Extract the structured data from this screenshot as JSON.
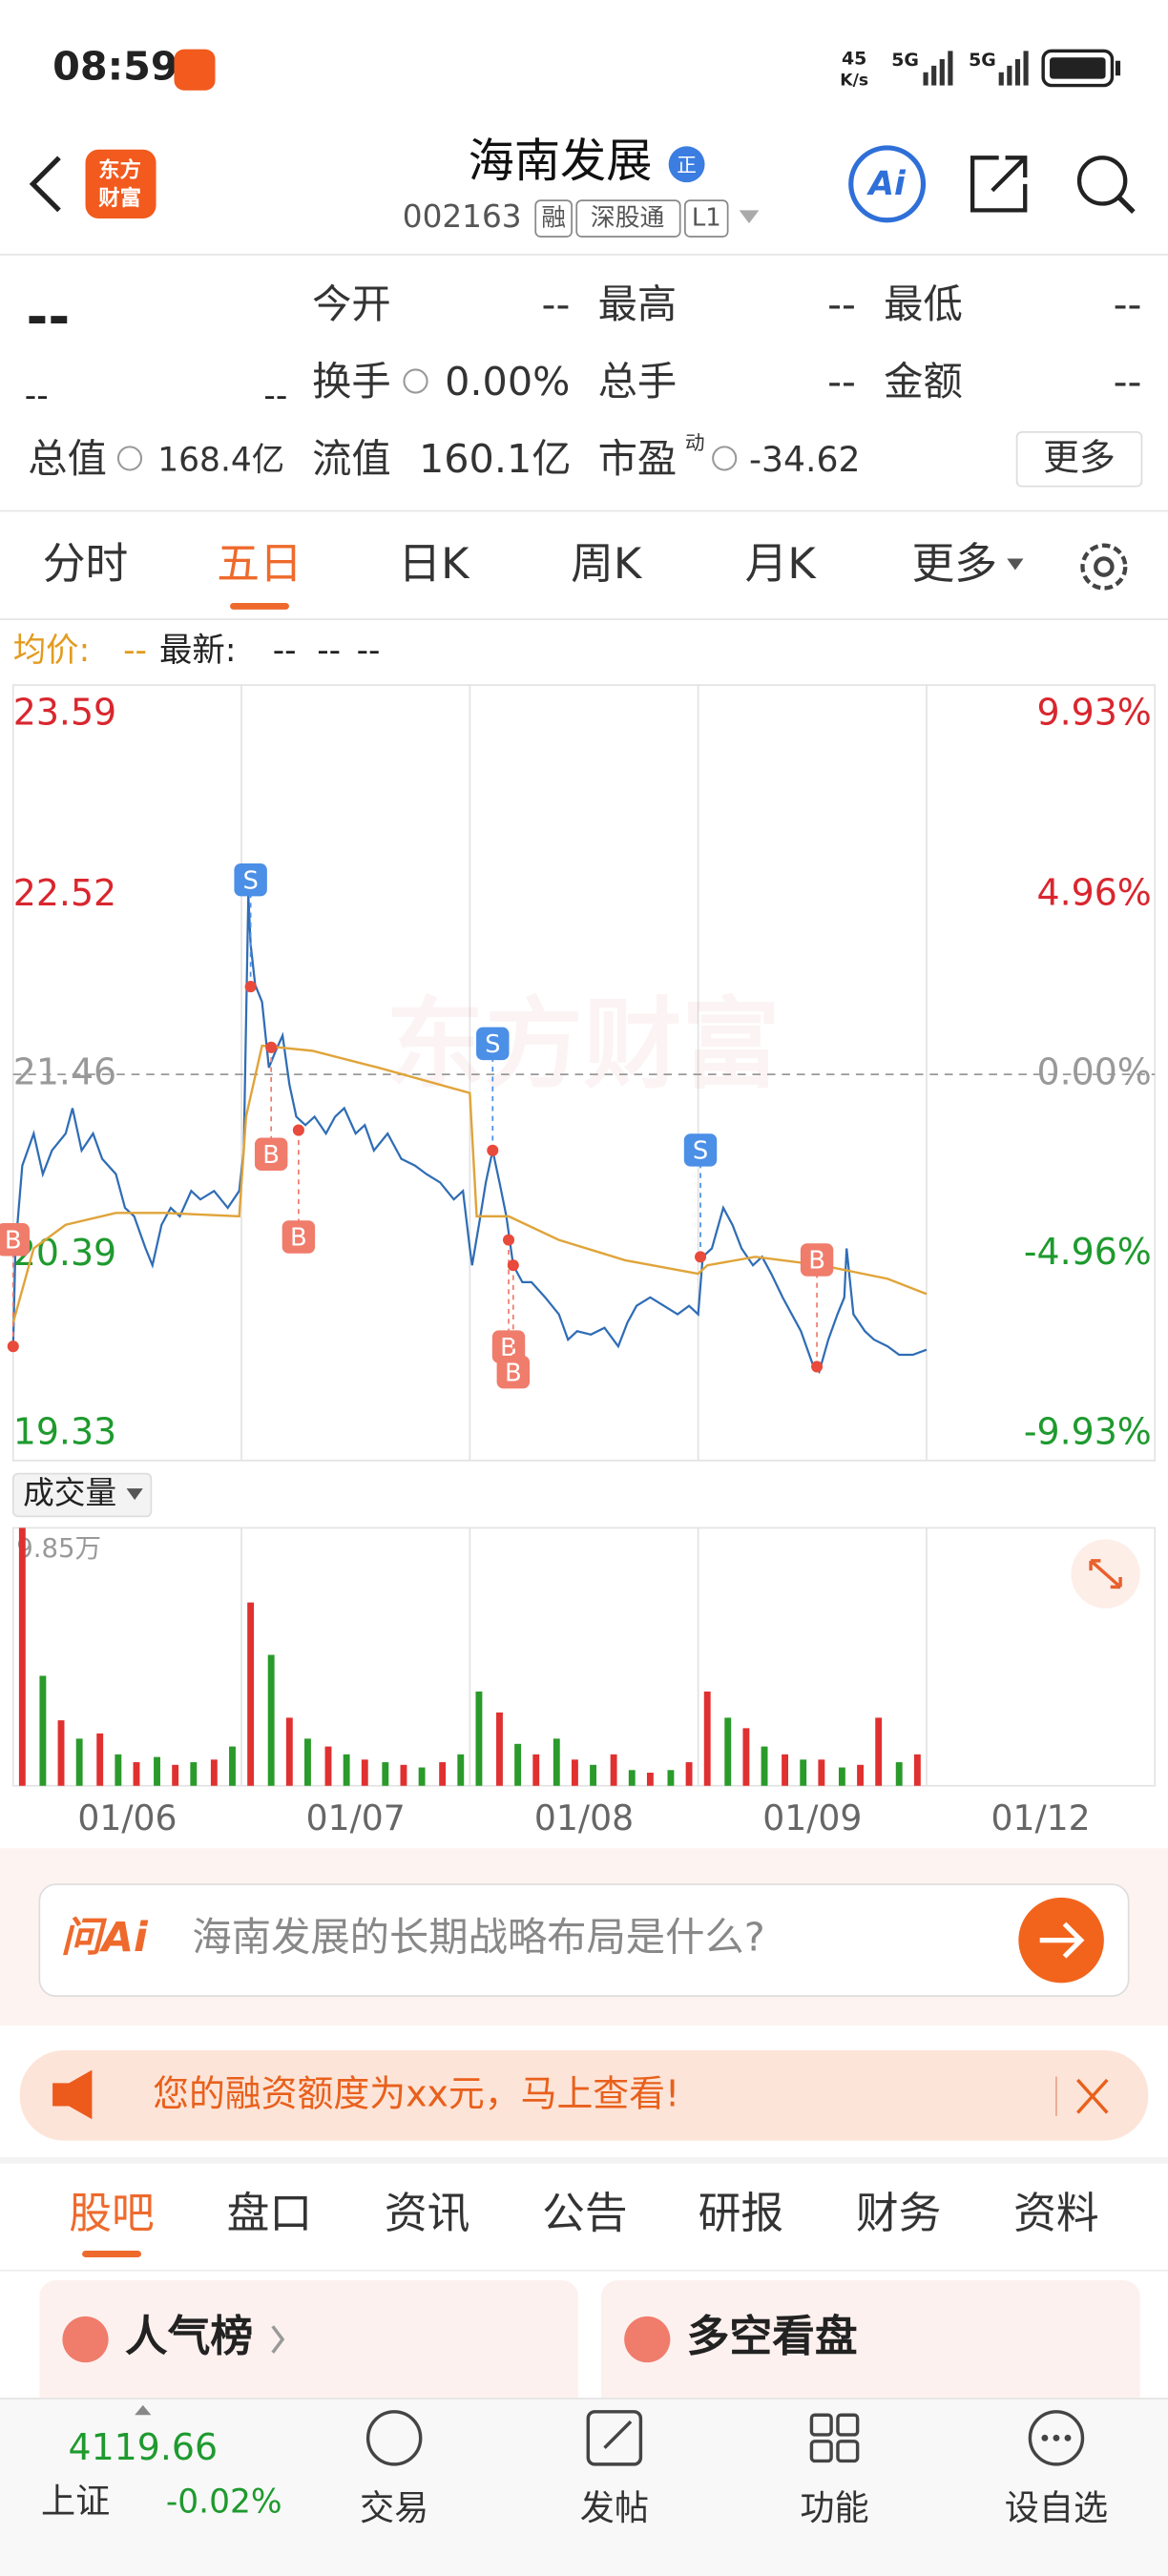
{
  "status_bar": {
    "time": "08:59",
    "speed": "45",
    "speed_unit": "K/s",
    "net1": "5G",
    "net2": "5G"
  },
  "header": {
    "logo": [
      "东方",
      "财富"
    ],
    "title": "海南发展",
    "badge": "正",
    "code": "002163",
    "tags": [
      "融",
      "深股通",
      "L1"
    ],
    "ai": "Ai"
  },
  "quote": {
    "price": "--",
    "change": "--",
    "change_pct": "--",
    "rows": [
      [
        {
          "label": "今开",
          "value": "--"
        },
        {
          "label": "最高",
          "value": "--"
        },
        {
          "label": "最低",
          "value": "--"
        }
      ],
      [
        {
          "label": "换手",
          "value": "0.00%"
        },
        {
          "label": "总手",
          "value": "--"
        },
        {
          "label": "金额",
          "value": "--"
        }
      ],
      [
        {
          "label": "总值",
          "value": "168.4亿"
        },
        {
          "label": "流值",
          "value": "160.1亿"
        },
        {
          "label": "市盈",
          "sup": "动",
          "value": "-34.62"
        }
      ]
    ],
    "more": "更多"
  },
  "tabs": {
    "items": [
      "分时",
      "五日",
      "日K",
      "周K",
      "月K",
      "更多"
    ],
    "active": 1
  },
  "info": {
    "avg_label": "均价:",
    "avg_value": "--",
    "latest_label": "最新:",
    "latest_values": [
      "--",
      "--",
      "--"
    ]
  },
  "volume_selector": "成交量",
  "chart_data": [
    {
      "type": "line",
      "watermark": "东方财富",
      "xlim": [
        0,
        5
      ],
      "ylim": [
        19.33,
        23.59
      ],
      "yticks": [
        23.59,
        22.52,
        21.46,
        20.39,
        19.33
      ],
      "y2lim": [
        -9.93,
        9.93
      ],
      "y2ticks": [
        {
          "value": 9.93,
          "label": "9.93%"
        },
        {
          "value": 4.96,
          "label": "4.96%"
        },
        {
          "value": 0,
          "label": "0.00%"
        },
        {
          "value": -4.96,
          "label": "-4.96%"
        },
        {
          "value": -9.93,
          "label": "-9.93%"
        }
      ],
      "series": [
        {
          "name": "最新",
          "color": "#2f6db5",
          "x": [
            0,
            0.01,
            0.04,
            0.09,
            0.13,
            0.17,
            0.23,
            0.26,
            0.3,
            0.35,
            0.39,
            0.45,
            0.49,
            0.53,
            0.58,
            0.61,
            0.65,
            0.69,
            0.73,
            0.78,
            0.82,
            0.88,
            0.94,
            0.99,
            1.01,
            1.03,
            1.04,
            1.06,
            1.09,
            1.12,
            1.15,
            1.18,
            1.21,
            1.24,
            1.28,
            1.32,
            1.37,
            1.41,
            1.45,
            1.5,
            1.54,
            1.58,
            1.64,
            1.7,
            1.76,
            1.81,
            1.87,
            1.93,
            1.97,
            2.0,
            2.01,
            2.04,
            2.07,
            2.1,
            2.13,
            2.16,
            2.19,
            2.23,
            2.27,
            2.33,
            2.39,
            2.43,
            2.47,
            2.53,
            2.59,
            2.65,
            2.69,
            2.73,
            2.79,
            2.85,
            2.91,
            2.96,
            3.0,
            3.02,
            3.06,
            3.11,
            3.15,
            3.19,
            3.24,
            3.28,
            3.32,
            3.37,
            3.41,
            3.45,
            3.5,
            3.53,
            3.57,
            3.61,
            3.64,
            3.65,
            3.68,
            3.73,
            3.77,
            3.83,
            3.88,
            3.94,
            4.0
          ],
          "values": [
            19.85,
            20.43,
            20.92,
            21.11,
            20.87,
            21.01,
            21.11,
            21.26,
            21.01,
            21.11,
            20.96,
            20.87,
            20.67,
            20.62,
            20.43,
            20.33,
            20.57,
            20.67,
            20.62,
            20.77,
            20.72,
            20.77,
            20.67,
            20.77,
            21.01,
            22.52,
            22.23,
            21.99,
            21.89,
            21.5,
            21.6,
            21.69,
            21.4,
            21.21,
            21.16,
            21.21,
            21.11,
            21.21,
            21.26,
            21.11,
            21.16,
            21.01,
            21.11,
            20.96,
            20.92,
            20.87,
            20.82,
            20.72,
            20.77,
            20.43,
            20.33,
            20.57,
            20.82,
            21.01,
            20.82,
            20.62,
            20.33,
            20.23,
            20.23,
            20.14,
            20.04,
            19.89,
            19.94,
            19.92,
            19.96,
            19.85,
            19.99,
            20.09,
            20.14,
            20.09,
            20.04,
            20.09,
            20.04,
            20.38,
            20.43,
            20.67,
            20.57,
            20.43,
            20.33,
            20.38,
            20.28,
            20.14,
            20.04,
            19.94,
            19.75,
            19.7,
            19.89,
            20.04,
            20.14,
            20.43,
            20.04,
            19.94,
            19.89,
            19.85,
            19.8,
            19.8,
            19.83
          ]
        },
        {
          "name": "均价",
          "color": "#e0a43a",
          "x": [
            0,
            0.09,
            0.23,
            0.45,
            0.66,
            0.99,
            1.02,
            1.09,
            1.31,
            1.6,
            2.0,
            2.03,
            2.17,
            2.39,
            2.68,
            3.0,
            3.04,
            3.25,
            3.54,
            3.83,
            4.0
          ],
          "values": [
            19.99,
            20.43,
            20.57,
            20.64,
            20.64,
            20.62,
            21.21,
            21.63,
            21.6,
            21.5,
            21.35,
            20.62,
            20.62,
            20.48,
            20.36,
            20.28,
            20.33,
            20.38,
            20.33,
            20.25,
            20.16
          ]
        }
      ],
      "markers": [
        {
          "label": "B",
          "x": 0,
          "value": 19.85,
          "position": "above"
        },
        {
          "label": "S",
          "x": 1.04,
          "value": 21.98,
          "position": "above"
        },
        {
          "label": "B",
          "x": 1.13,
          "value": 21.62,
          "position": "below"
        },
        {
          "label": "B",
          "x": 1.25,
          "value": 21.13,
          "position": "below"
        },
        {
          "label": "S",
          "x": 2.1,
          "value": 21.01,
          "position": "above"
        },
        {
          "label": "B",
          "x": 2.17,
          "value": 20.48,
          "position": "below"
        },
        {
          "label": "B",
          "x": 2.19,
          "value": 20.33,
          "position": "below"
        },
        {
          "label": "S",
          "x": 3.01,
          "value": 20.38,
          "position": "above"
        },
        {
          "label": "B",
          "x": 3.52,
          "value": 19.73,
          "position": "above"
        }
      ]
    },
    {
      "type": "bar",
      "xlim": [
        0,
        5
      ],
      "ylim": [
        0,
        9.85
      ],
      "yticks": [
        {
          "value": 9.85,
          "label": "9.85万"
        }
      ],
      "xticks": [
        {
          "value": 0.5,
          "label": "01/06"
        },
        {
          "value": 1.5,
          "label": "01/07"
        },
        {
          "value": 2.5,
          "label": "01/08"
        },
        {
          "value": 3.5,
          "label": "01/09"
        },
        {
          "value": 4.5,
          "label": "01/12"
        }
      ],
      "x": [
        0.04,
        0.13,
        0.21,
        0.29,
        0.38,
        0.46,
        0.54,
        0.63,
        0.71,
        0.79,
        0.88,
        0.96,
        1.04,
        1.13,
        1.21,
        1.29,
        1.38,
        1.46,
        1.54,
        1.63,
        1.71,
        1.79,
        1.88,
        1.96,
        2.04,
        2.13,
        2.21,
        2.29,
        2.38,
        2.46,
        2.54,
        2.63,
        2.71,
        2.79,
        2.88,
        2.96,
        3.04,
        3.13,
        3.21,
        3.29,
        3.38,
        3.46,
        3.54,
        3.63,
        3.71,
        3.79,
        3.88,
        3.96
      ],
      "values": [
        9.85,
        4.2,
        2.5,
        1.8,
        2.0,
        1.2,
        0.9,
        1.1,
        0.8,
        0.9,
        1.0,
        1.5,
        7.0,
        5.0,
        2.6,
        1.8,
        1.5,
        1.2,
        1.0,
        0.9,
        0.8,
        0.7,
        0.9,
        1.2,
        3.6,
        2.8,
        1.6,
        1.2,
        1.8,
        1.0,
        0.8,
        1.2,
        0.6,
        0.5,
        0.6,
        0.9,
        3.6,
        2.6,
        2.2,
        1.5,
        1.2,
        1.0,
        1.0,
        0.7,
        0.8,
        2.6,
        0.9,
        1.2
      ],
      "colors": [
        "#e03030",
        "#2a9a2a",
        "#e03030",
        "#2a9a2a",
        "#e03030",
        "#2a9a2a",
        "#e03030",
        "#2a9a2a",
        "#e03030",
        "#2a9a2a",
        "#e03030",
        "#2a9a2a",
        "#e03030",
        "#2a9a2a",
        "#e03030",
        "#2a9a2a",
        "#e03030",
        "#2a9a2a",
        "#e03030",
        "#2a9a2a",
        "#e03030",
        "#2a9a2a",
        "#e03030",
        "#2a9a2a",
        "#2a9a2a",
        "#e03030",
        "#2a9a2a",
        "#e03030",
        "#2a9a2a",
        "#e03030",
        "#2a9a2a",
        "#e03030",
        "#2a9a2a",
        "#e03030",
        "#2a9a2a",
        "#e03030",
        "#e03030",
        "#2a9a2a",
        "#e03030",
        "#2a9a2a",
        "#e03030",
        "#2a9a2a",
        "#e03030",
        "#2a9a2a",
        "#e03030",
        "#e03030",
        "#2a9a2a",
        "#e03030"
      ]
    }
  ],
  "ai_box": {
    "brand": "问Ai",
    "question": "海南发展的长期战略布局是什么?"
  },
  "banner": "您的融资额度为xx元，马上查看!",
  "bottom_tabs": {
    "items": [
      "股吧",
      "盘口",
      "资讯",
      "公告",
      "研报",
      "财务",
      "资料"
    ],
    "active": 0
  },
  "cards": [
    "人气榜",
    "多空看盘"
  ],
  "nav": {
    "index_value": "4119.66",
    "index_name": "上证",
    "index_change": "-0.02%",
    "items": [
      "交易",
      "发帖",
      "功能",
      "设自选"
    ]
  }
}
